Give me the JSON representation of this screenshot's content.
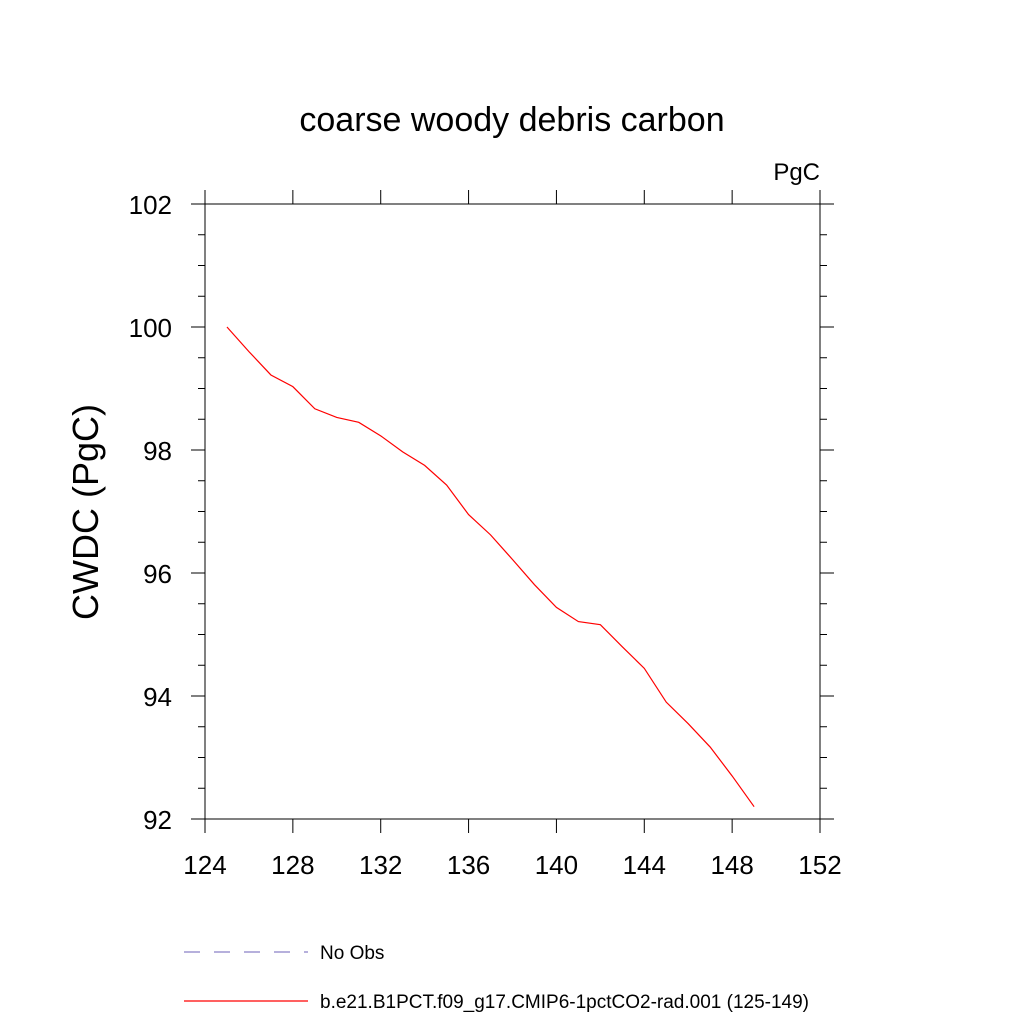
{
  "chart_data": {
    "type": "line",
    "title": "coarse woody debris carbon",
    "units_label": "PgC",
    "xlabel": "",
    "ylabel": "CWDC  (PgC)",
    "xlim": [
      124,
      152
    ],
    "ylim": [
      92,
      102
    ],
    "x_ticks": [
      124,
      128,
      132,
      136,
      140,
      144,
      148,
      152
    ],
    "y_ticks": [
      92,
      94,
      96,
      98,
      100,
      102
    ],
    "grid": false,
    "legend_position": "bottom",
    "series": [
      {
        "name": "b.e21.B1PCT.f09_g17.CMIP6-1pctCO2-rad.001 (125-149)",
        "color": "#ff0000",
        "dash": "solid",
        "x": [
          125,
          126,
          127,
          128,
          129,
          130,
          131,
          132,
          133,
          134,
          135,
          136,
          137,
          138,
          139,
          140,
          141,
          142,
          143,
          144,
          145,
          146,
          147,
          148,
          149
        ],
        "y": [
          100.0,
          99.6,
          99.22,
          99.03,
          98.67,
          98.53,
          98.45,
          98.23,
          97.97,
          97.75,
          97.43,
          96.95,
          96.62,
          96.22,
          95.81,
          95.44,
          95.21,
          95.16,
          94.8,
          94.45,
          93.9,
          93.55,
          93.17,
          92.7,
          92.2
        ]
      },
      {
        "name": "No Obs",
        "color": "#8a80c8",
        "dash": "dashed",
        "x": [],
        "y": []
      }
    ]
  }
}
